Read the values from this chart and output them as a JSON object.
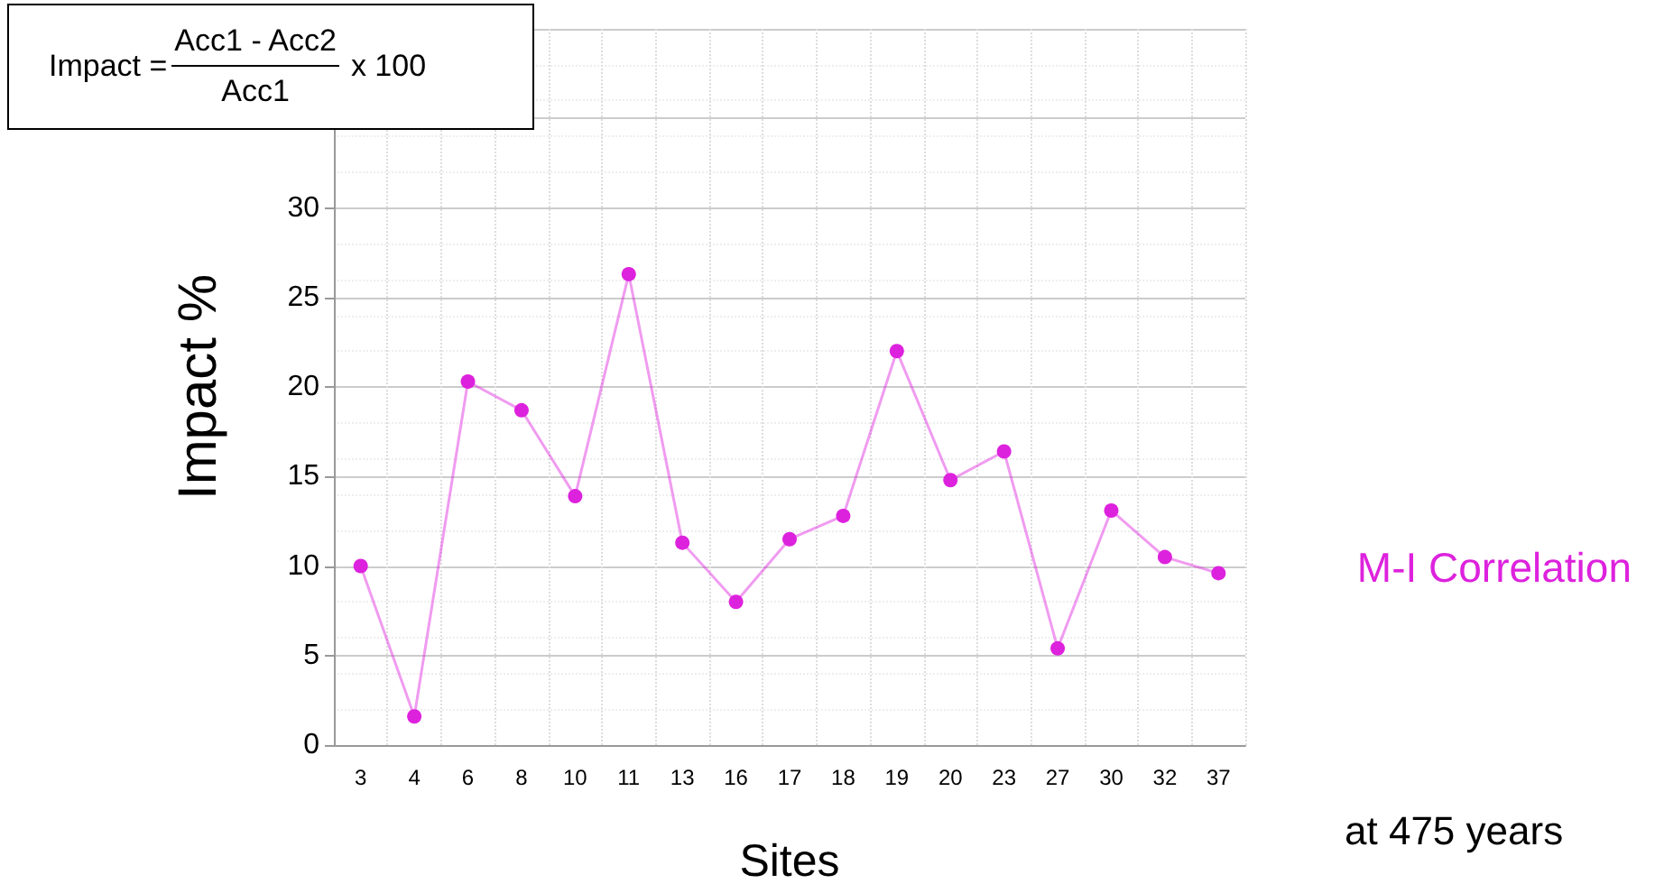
{
  "chart_data": {
    "type": "line",
    "xlabel": "Sites",
    "ylabel": "Impact %",
    "categories": [
      "3",
      "4",
      "6",
      "8",
      "10",
      "11",
      "13",
      "16",
      "17",
      "18",
      "19",
      "20",
      "23",
      "27",
      "30",
      "32",
      "37"
    ],
    "series": [
      {
        "name": "M-I Correlation",
        "color": "#dd22dd",
        "values": [
          10,
          1.6,
          20.3,
          18.7,
          13.9,
          26.3,
          11.3,
          8,
          11.5,
          12.8,
          22,
          14.8,
          16.4,
          5.4,
          13.1,
          10.5,
          9.6
        ]
      }
    ],
    "ylim": [
      0,
      40
    ],
    "yticks": [
      0,
      5,
      10,
      15,
      20,
      25,
      30,
      {
        "value": 35,
        "label": null
      },
      {
        "value": 40,
        "label": null
      }
    ],
    "grid": true,
    "legend": "right",
    "marker": "circle",
    "line_style": "solid",
    "annotations": [
      "Impact =",
      "Acc1 - Acc2",
      "Acc1",
      "x 100",
      "at 475 years"
    ]
  }
}
